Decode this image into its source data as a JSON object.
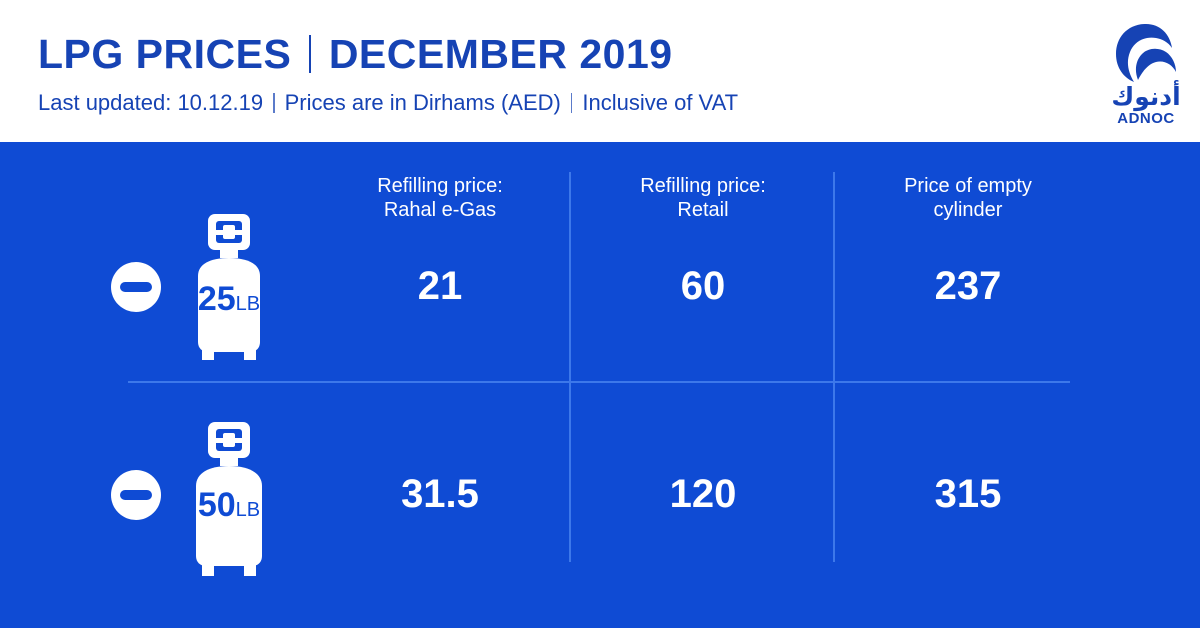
{
  "header": {
    "title_part1": "LPG PRICES",
    "title_part2": "DECEMBER 2019",
    "subtitle": [
      "Last updated: 10.12.19",
      "Prices are in Dirhams (AED)",
      "Inclusive of VAT"
    ]
  },
  "logo": {
    "arabic": "أدنوك",
    "english": "ADNOC",
    "icon": "falcon-icon"
  },
  "table": {
    "columns": [
      {
        "line1": "Refilling price:",
        "line2": "Rahal e-Gas"
      },
      {
        "line1": "Refilling price:",
        "line2": "Retail"
      },
      {
        "line1": "Price of empty",
        "line2": "cylinder"
      }
    ],
    "rows": [
      {
        "size": "25",
        "unit": "LB",
        "values": [
          "21",
          "60",
          "237"
        ]
      },
      {
        "size": "50",
        "unit": "LB",
        "values": [
          "31.5",
          "120",
          "315"
        ]
      }
    ]
  },
  "colors": {
    "brand_blue": "#1643b4",
    "panel_blue": "#0f4bd4",
    "divider": "#3d78ea",
    "text_light": "#ffffff"
  }
}
